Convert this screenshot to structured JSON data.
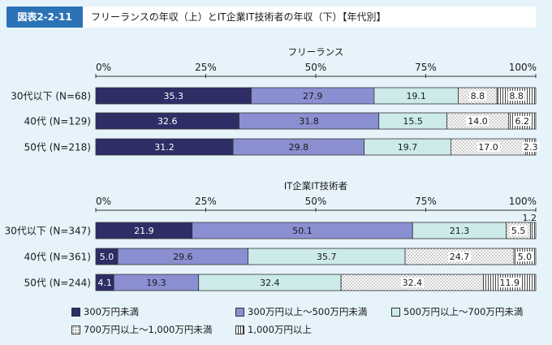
{
  "header": {
    "figure_label": "図表2-2-11",
    "title": "フリーランスの年収（上）とIT企業IT技術者の年収（下）【年代別】"
  },
  "colors": {
    "cat1": "#2e2d66",
    "cat2": "#8a8fd1",
    "cat3": "#cceaea",
    "cat4": "#ffffff",
    "cat5": "#ffffff",
    "background": "#e6f3fa",
    "header_accent": "#2b73b6"
  },
  "legend": [
    {
      "label": "300万円未満",
      "fill": "cat1",
      "pattern": "solid"
    },
    {
      "label": "300万円以上～500万円未満",
      "fill": "cat2",
      "pattern": "solid"
    },
    {
      "label": "500万円以上～700万円未満",
      "fill": "cat3",
      "pattern": "solid"
    },
    {
      "label": "700万円以上～1,000万円未満",
      "fill": "cat4",
      "pattern": "dots"
    },
    {
      "label": "1,000万円以上",
      "fill": "cat5",
      "pattern": "vlines"
    }
  ],
  "chart_data": [
    {
      "type": "bar",
      "orientation": "horizontal",
      "stacked": true,
      "title": "フリーランス",
      "xlim": [
        0,
        100
      ],
      "xticks": [
        "0%",
        "25%",
        "50%",
        "75%",
        "100%"
      ],
      "categories": [
        "30代以下 (N=68)",
        "40代 (N=129)",
        "50代 (N=218)"
      ],
      "series": [
        {
          "name": "300万円未満",
          "values": [
            35.3,
            32.6,
            31.2
          ],
          "labels": [
            "35.3",
            "32.6",
            "31.2"
          ]
        },
        {
          "name": "300万円以上～500万円未満",
          "values": [
            27.9,
            31.8,
            29.8
          ],
          "labels": [
            "27.9",
            "31.8",
            "29.8"
          ]
        },
        {
          "name": "500万円以上～700万円未満",
          "values": [
            19.1,
            15.5,
            19.7
          ],
          "labels": [
            "19.1",
            "15.5",
            "19.7"
          ]
        },
        {
          "name": "700万円以上～1,000万円未満",
          "values": [
            8.8,
            14.0,
            17.0
          ],
          "labels": [
            "8.8",
            "14.0",
            "17.0"
          ]
        },
        {
          "name": "1,000万円以上",
          "values": [
            8.8,
            6.2,
            2.3
          ],
          "labels": [
            "8.8",
            "6.2",
            "2.3"
          ]
        }
      ]
    },
    {
      "type": "bar",
      "orientation": "horizontal",
      "stacked": true,
      "title": "IT企業IT技術者",
      "xlim": [
        0,
        100
      ],
      "xticks": [
        "0%",
        "25%",
        "50%",
        "75%",
        "100%"
      ],
      "categories": [
        "30代以下 (N=347)",
        "40代 (N=361)",
        "50代 (N=244)"
      ],
      "series": [
        {
          "name": "300万円未満",
          "values": [
            21.9,
            5.0,
            4.1
          ],
          "labels": [
            "21.9",
            "5.0",
            "4.1"
          ]
        },
        {
          "name": "300万円以上～500万円未満",
          "values": [
            50.1,
            29.6,
            19.3
          ],
          "labels": [
            "50.1",
            "29.6",
            "19.3"
          ]
        },
        {
          "name": "500万円以上～700万円未満",
          "values": [
            21.3,
            35.7,
            32.4
          ],
          "labels": [
            "21.3",
            "35.7",
            "32.4"
          ]
        },
        {
          "name": "700万円以上～1,000万円未満",
          "values": [
            5.5,
            24.7,
            32.4
          ],
          "labels": [
            "5.5",
            "24.7",
            "32.4"
          ]
        },
        {
          "name": "1,000万円以上",
          "values": [
            1.2,
            5.0,
            11.9
          ],
          "labels": [
            "1.2",
            "5.0",
            "11.9"
          ]
        }
      ]
    }
  ]
}
